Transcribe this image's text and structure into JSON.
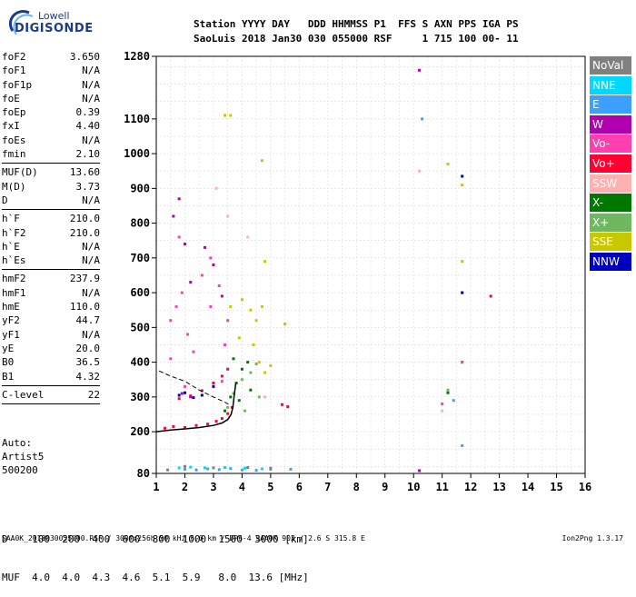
{
  "logo": {
    "line1": "Lowell",
    "line2": "DIGISONDE"
  },
  "header": {
    "row1": "Station YYYY DAY   DDD HHMMSS P1  FFS S AXN PPS IGA PS",
    "row2": "SaoLuis 2018 Jan30 030 055000 RSF     1 715 100 00- 11"
  },
  "params": [
    {
      "name": "foF2",
      "value": "3.650"
    },
    {
      "name": "foF1",
      "value": "N/A"
    },
    {
      "name": "foF1p",
      "value": "N/A"
    },
    {
      "name": "foE",
      "value": "N/A"
    },
    {
      "name": "foEp",
      "value": "0.39"
    },
    {
      "name": "fxI",
      "value": "4.40"
    },
    {
      "name": "foEs",
      "value": "N/A"
    },
    {
      "name": "fmin",
      "value": "2.10"
    },
    {
      "sep": true
    },
    {
      "name": "MUF(D)",
      "value": "13.60"
    },
    {
      "name": "M(D)",
      "value": "3.73"
    },
    {
      "name": "D",
      "value": "N/A"
    },
    {
      "sep": true
    },
    {
      "name": "h`F",
      "value": "210.0"
    },
    {
      "name": "h`F2",
      "value": "210.0"
    },
    {
      "name": "h`E",
      "value": "N/A"
    },
    {
      "name": "h`Es",
      "value": "N/A"
    },
    {
      "sep": true
    },
    {
      "name": "hmF2",
      "value": "237.9"
    },
    {
      "name": "hmF1",
      "value": "N/A"
    },
    {
      "name": "hmE",
      "value": "110.0"
    },
    {
      "name": "yF2",
      "value": "44.7"
    },
    {
      "name": "yF1",
      "value": "N/A"
    },
    {
      "name": "yE",
      "value": "20.0"
    },
    {
      "name": "B0",
      "value": "36.5"
    },
    {
      "name": "B1",
      "value": "4.32"
    },
    {
      "sep": true
    },
    {
      "name": "C-level",
      "value": "22"
    },
    {
      "sep": true
    }
  ],
  "auto": {
    "line1": "Auto:",
    "line2": "Artist5",
    "line3": "500200"
  },
  "bottom": {
    "row1": "D    100  200  400  600  800  1000  1500  3000 [km]",
    "row2": "MUF  4.0  4.0  4.3  4.6  5.1  5.9   8.0  13.6 [MHz]"
  },
  "footer": {
    "left": "SAA0K_2018030055000.RSF / 300fx256h 50 kHz 5.0 km / DPS-4 SAA0K 903 / 2.6 S 315.8 E",
    "right": "Ion2Png 1.3.17"
  },
  "legend": [
    {
      "label": "NoVal",
      "color": "#808080"
    },
    {
      "label": "NNE",
      "color": "#00d8ff"
    },
    {
      "label": "E",
      "color": "#3ba0ff"
    },
    {
      "label": "W",
      "color": "#b000b0"
    },
    {
      "label": "Vo-",
      "color": "#ff3fb0"
    },
    {
      "label": "Vo+",
      "color": "#ff0030"
    },
    {
      "label": "SSW",
      "color": "#ffb0b0"
    },
    {
      "label": "X-",
      "color": "#007800"
    },
    {
      "label": "X+",
      "color": "#70b860"
    },
    {
      "label": "SSE",
      "color": "#c8c800"
    },
    {
      "label": "NNW",
      "color": "#0000c0"
    }
  ],
  "chart_data": {
    "type": "scatter",
    "xlabel": "",
    "ylabel": "",
    "xlim": [
      1,
      16
    ],
    "ylim": [
      80,
      1280
    ],
    "xticks": [
      1,
      2,
      3,
      4,
      5,
      6,
      7,
      8,
      9,
      10,
      11,
      12,
      13,
      14,
      15,
      16
    ],
    "yticks": [
      80,
      200,
      300,
      400,
      500,
      600,
      700,
      800,
      900,
      1000,
      1100,
      1280
    ],
    "grid": true,
    "series": [
      {
        "name": "Vo+",
        "color": "#ff0030",
        "points": [
          [
            1.3,
            210
          ],
          [
            1.6,
            215
          ],
          [
            2.0,
            212
          ],
          [
            2.4,
            218
          ],
          [
            2.8,
            222
          ],
          [
            3.1,
            230
          ],
          [
            3.3,
            238
          ],
          [
            3.5,
            252
          ],
          [
            3.65,
            270
          ],
          [
            1.8,
            295
          ],
          [
            2.2,
            303
          ],
          [
            2.6,
            318
          ],
          [
            3.0,
            340
          ],
          [
            3.3,
            360
          ],
          [
            3.5,
            380
          ],
          [
            5.4,
            278
          ],
          [
            5.6,
            272
          ],
          [
            11.7,
            400
          ],
          [
            12.7,
            590
          ]
        ]
      },
      {
        "name": "Vo-",
        "color": "#ff3fb0",
        "points": [
          [
            1.5,
            520
          ],
          [
            1.7,
            560
          ],
          [
            1.9,
            600
          ],
          [
            2.1,
            480
          ],
          [
            2.6,
            650
          ],
          [
            2.9,
            700
          ],
          [
            3.2,
            620
          ],
          [
            3.5,
            520
          ],
          [
            3.4,
            450
          ],
          [
            2.3,
            430
          ],
          [
            2.0,
            330
          ],
          [
            1.8,
            760
          ],
          [
            2.9,
            560
          ],
          [
            11.0,
            280
          ],
          [
            11.7,
            400
          ],
          [
            3.3,
            345
          ],
          [
            1.5,
            410
          ]
        ]
      },
      {
        "name": "W",
        "color": "#b000b0",
        "points": [
          [
            1.6,
            820
          ],
          [
            1.8,
            870
          ],
          [
            2.0,
            740
          ],
          [
            2.2,
            630
          ],
          [
            2.7,
            730
          ],
          [
            3.0,
            680
          ],
          [
            3.3,
            590
          ],
          [
            1.9,
            310
          ],
          [
            2.2,
            300
          ],
          [
            10.2,
            1240
          ],
          [
            10.2,
            88
          ]
        ]
      },
      {
        "name": "X-",
        "color": "#007800",
        "points": [
          [
            3.4,
            260
          ],
          [
            3.6,
            300
          ],
          [
            3.8,
            340
          ],
          [
            4.0,
            380
          ],
          [
            4.2,
            400
          ],
          [
            3.9,
            290
          ],
          [
            4.3,
            320
          ],
          [
            3.7,
            410
          ],
          [
            11.2,
            312
          ]
        ]
      },
      {
        "name": "X+",
        "color": "#70b860",
        "points": [
          [
            3.5,
            270
          ],
          [
            3.7,
            310
          ],
          [
            4.0,
            350
          ],
          [
            4.3,
            370
          ],
          [
            4.5,
            395
          ],
          [
            4.6,
            300
          ],
          [
            4.1,
            260
          ],
          [
            11.2,
            320
          ]
        ]
      },
      {
        "name": "SSE",
        "color": "#c8c800",
        "points": [
          [
            3.6,
            560
          ],
          [
            4.0,
            580
          ],
          [
            4.3,
            550
          ],
          [
            4.5,
            520
          ],
          [
            4.7,
            560
          ],
          [
            3.9,
            470
          ],
          [
            4.4,
            450
          ],
          [
            4.6,
            400
          ],
          [
            4.8,
            370
          ],
          [
            5.0,
            390
          ],
          [
            5.5,
            510
          ],
          [
            4.8,
            690
          ],
          [
            4.7,
            980
          ],
          [
            11.2,
            970
          ],
          [
            11.7,
            910
          ],
          [
            11.7,
            600
          ],
          [
            11.7,
            690
          ],
          [
            3.4,
            1110
          ],
          [
            3.6,
            1110
          ]
        ]
      },
      {
        "name": "SSW",
        "color": "#ffb0b0",
        "points": [
          [
            3.1,
            900
          ],
          [
            3.5,
            820
          ],
          [
            4.2,
            760
          ],
          [
            10.2,
            950
          ],
          [
            11.0,
            260
          ],
          [
            4.8,
            300
          ]
        ]
      },
      {
        "name": "E",
        "color": "#3ba0ff",
        "points": [
          [
            2.0,
            92
          ],
          [
            2.4,
            90
          ],
          [
            2.8,
            93
          ],
          [
            3.2,
            91
          ],
          [
            3.6,
            94
          ],
          [
            4.0,
            90
          ],
          [
            4.5,
            89
          ],
          [
            5.0,
            92
          ],
          [
            5.7,
            92
          ],
          [
            10.3,
            1100
          ],
          [
            11.4,
            290
          ],
          [
            11.7,
            160
          ]
        ]
      },
      {
        "name": "NNE",
        "color": "#00d8ff",
        "points": [
          [
            1.8,
            96
          ],
          [
            2.2,
            98
          ],
          [
            2.7,
            96
          ],
          [
            3.4,
            97
          ],
          [
            4.1,
            95
          ],
          [
            4.7,
            93
          ]
        ]
      },
      {
        "name": "NNW",
        "color": "#0000c0",
        "points": [
          [
            1.8,
            305
          ],
          [
            2.0,
            312
          ],
          [
            2.3,
            298
          ],
          [
            2.6,
            305
          ],
          [
            3.0,
            330
          ],
          [
            11.7,
            935
          ],
          [
            11.7,
            600
          ]
        ]
      },
      {
        "name": "NoVal",
        "color": "#808080",
        "points": [
          [
            1.4,
            90
          ],
          [
            2.0,
            100
          ],
          [
            3.0,
            96
          ],
          [
            4.2,
            97
          ],
          [
            5.0,
            95
          ]
        ]
      }
    ],
    "trace": {
      "name": "profile",
      "points": [
        [
          1.0,
          200
        ],
        [
          1.5,
          205
        ],
        [
          2.0,
          208
        ],
        [
          2.5,
          212
        ],
        [
          3.0,
          218
        ],
        [
          3.3,
          225
        ],
        [
          3.5,
          235
        ],
        [
          3.62,
          250
        ],
        [
          3.68,
          270
        ],
        [
          3.72,
          300
        ],
        [
          3.78,
          340
        ]
      ]
    },
    "trace2": {
      "name": "profile2",
      "points": [
        [
          1.1,
          375
        ],
        [
          1.5,
          360
        ],
        [
          2.0,
          345
        ],
        [
          2.5,
          320
        ],
        [
          3.0,
          300
        ],
        [
          3.4,
          285
        ],
        [
          3.6,
          275
        ]
      ]
    }
  }
}
